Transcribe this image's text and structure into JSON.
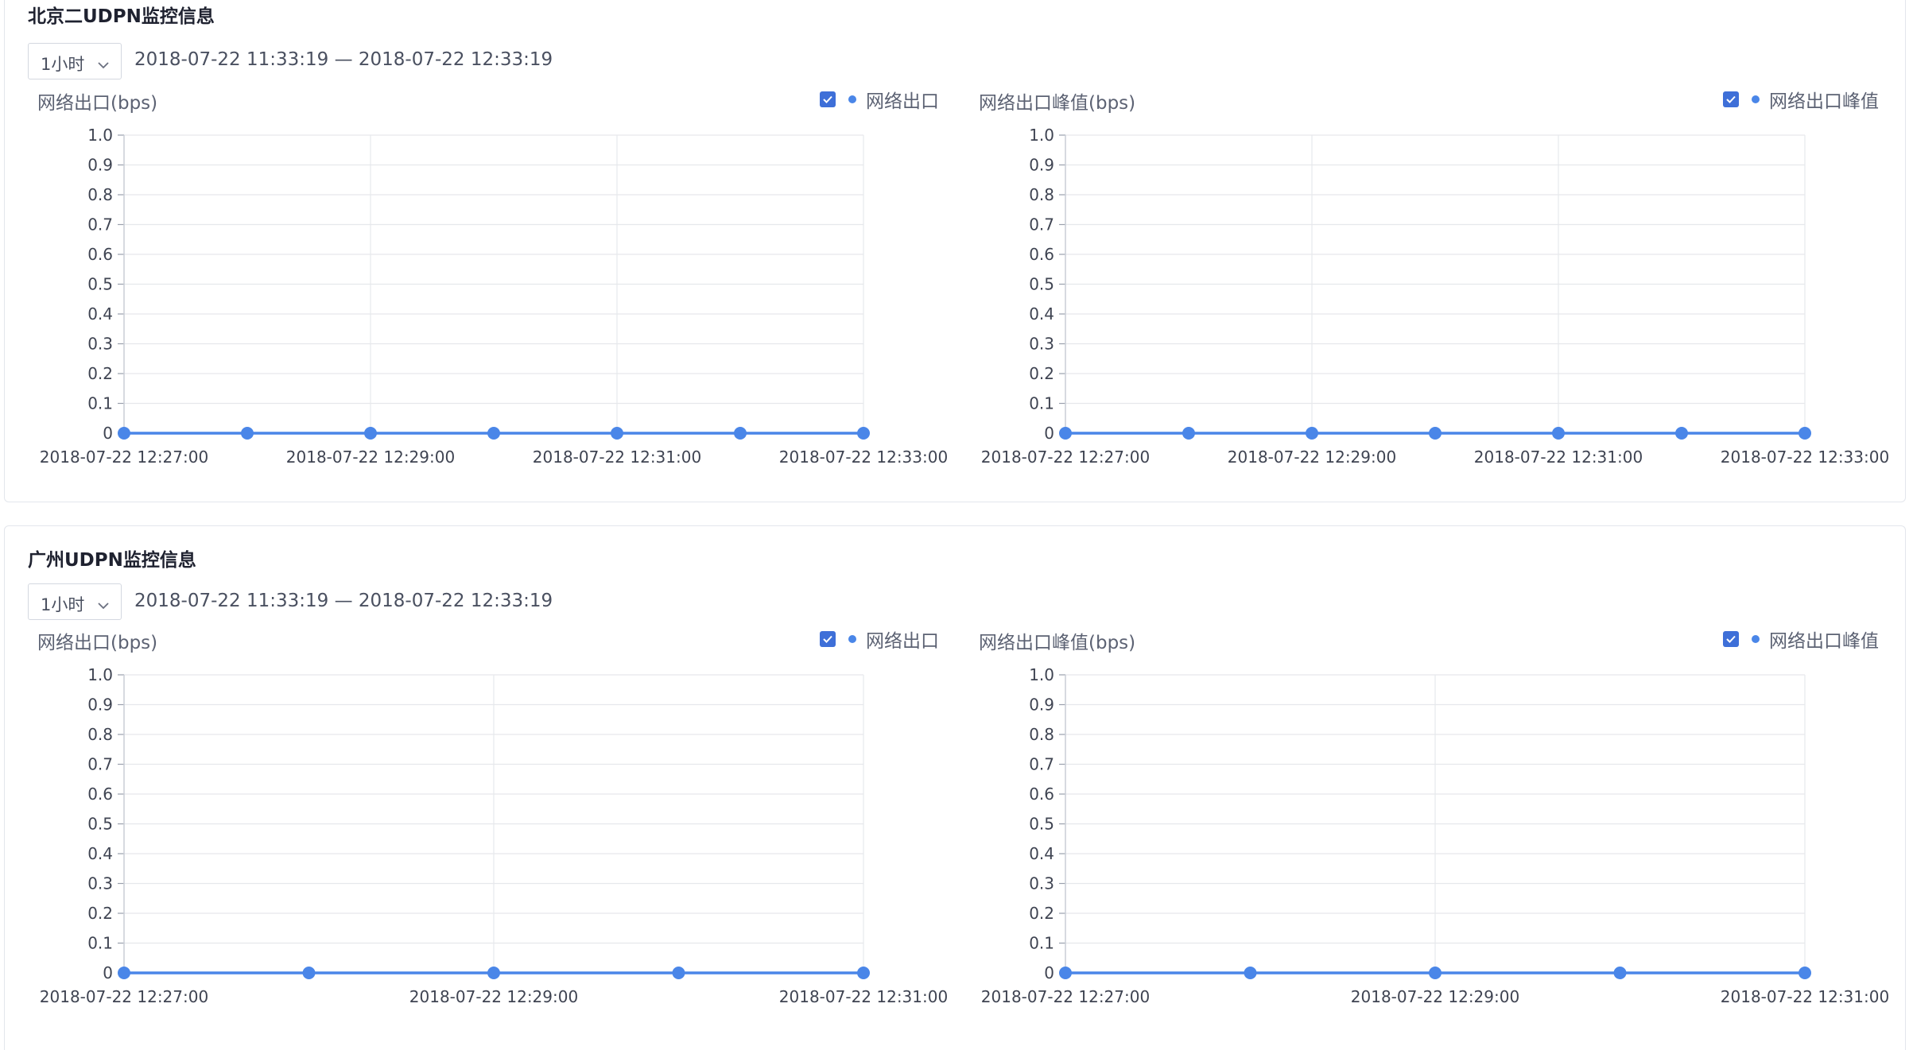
{
  "colors": {
    "accent": "#4a86e8",
    "checkbox": "#3e6fd8",
    "grid": "#e6e8ec",
    "title": "#1f2230",
    "text": "#5c6273"
  },
  "panels": [
    {
      "title": "北京二UDPN监控信息",
      "range_select": "1小时",
      "time_range": "2018-07-22 11:33:19 — 2018-07-22 12:33:19",
      "charts": [
        {
          "title": "网络出口(bps)",
          "legend": "网络出口",
          "legend_checked": true
        },
        {
          "title": "网络出口峰值(bps)",
          "legend": "网络出口峰值",
          "legend_checked": true
        }
      ]
    },
    {
      "title": "广州UDPN监控信息",
      "range_select": "1小时",
      "time_range": "2018-07-22 11:33:19 — 2018-07-22 12:33:19",
      "charts": [
        {
          "title": "网络出口(bps)",
          "legend": "网络出口",
          "legend_checked": true
        },
        {
          "title": "网络出口峰值(bps)",
          "legend": "网络出口峰值",
          "legend_checked": true
        }
      ]
    }
  ],
  "chart_data": [
    {
      "type": "line",
      "title": "网络出口(bps)",
      "series": [
        {
          "name": "网络出口",
          "values": [
            0,
            0,
            0,
            0,
            0,
            0,
            0
          ]
        }
      ],
      "x": [
        "12:27:00",
        "12:28:00",
        "12:29:00",
        "12:30:00",
        "12:31:00",
        "12:32:00",
        "12:33:00"
      ],
      "x_tick_labels": [
        "2018-07-22 12:27:00",
        "2018-07-22 12:29:00",
        "2018-07-22 12:31:00",
        "2018-07-22 12:33:00"
      ],
      "y_tick_labels": [
        "0",
        "0.1",
        "0.2",
        "0.3",
        "0.4",
        "0.5",
        "0.6",
        "0.7",
        "0.8",
        "0.9",
        "1.0"
      ],
      "ylim": [
        0,
        1.0
      ],
      "grid": true,
      "legend_position": "top-right"
    },
    {
      "type": "line",
      "title": "网络出口峰值(bps)",
      "series": [
        {
          "name": "网络出口峰值",
          "values": [
            0,
            0,
            0,
            0,
            0,
            0,
            0
          ]
        }
      ],
      "x": [
        "12:27:00",
        "12:28:00",
        "12:29:00",
        "12:30:00",
        "12:31:00",
        "12:32:00",
        "12:33:00"
      ],
      "x_tick_labels": [
        "2018-07-22 12:27:00",
        "2018-07-22 12:29:00",
        "2018-07-22 12:31:00",
        "2018-07-22 12:33:00"
      ],
      "y_tick_labels": [
        "0",
        "0.1",
        "0.2",
        "0.3",
        "0.4",
        "0.5",
        "0.6",
        "0.7",
        "0.8",
        "0.9",
        "1.0"
      ],
      "ylim": [
        0,
        1.0
      ],
      "grid": true,
      "legend_position": "top-right"
    },
    {
      "type": "line",
      "title": "网络出口(bps)",
      "series": [
        {
          "name": "网络出口",
          "values": [
            0,
            0,
            0,
            0,
            0
          ]
        }
      ],
      "x": [
        "12:27:00",
        "12:28:00",
        "12:29:00",
        "12:30:00",
        "12:31:00"
      ],
      "x_tick_labels": [
        "2018-07-22 12:27:00",
        "2018-07-22 12:29:00",
        "2018-07-22 12:31:00"
      ],
      "y_tick_labels": [
        "0",
        "0.1",
        "0.2",
        "0.3",
        "0.4",
        "0.5",
        "0.6",
        "0.7",
        "0.8",
        "0.9",
        "1.0"
      ],
      "ylim": [
        0,
        1.0
      ],
      "grid": true,
      "legend_position": "top-right"
    },
    {
      "type": "line",
      "title": "网络出口峰值(bps)",
      "series": [
        {
          "name": "网络出口峰值",
          "values": [
            0,
            0,
            0,
            0,
            0
          ]
        }
      ],
      "x": [
        "12:27:00",
        "12:28:00",
        "12:29:00",
        "12:30:00",
        "12:31:00"
      ],
      "x_tick_labels": [
        "2018-07-22 12:27:00",
        "2018-07-22 12:29:00",
        "2018-07-22 12:31:00"
      ],
      "y_tick_labels": [
        "0",
        "0.1",
        "0.2",
        "0.3",
        "0.4",
        "0.5",
        "0.6",
        "0.7",
        "0.8",
        "0.9",
        "1.0"
      ],
      "ylim": [
        0,
        1.0
      ],
      "grid": true,
      "legend_position": "top-right"
    }
  ]
}
